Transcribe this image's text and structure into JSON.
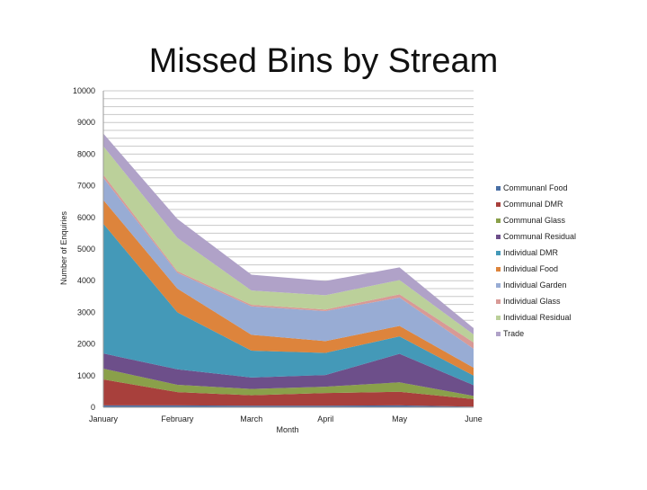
{
  "chart_data": {
    "type": "area",
    "stacked": true,
    "title": "Missed Bins by Stream",
    "xlabel": "Month",
    "ylabel": "Number of Enquiries",
    "categories": [
      "January",
      "February",
      "March",
      "April",
      "May",
      "June"
    ],
    "ylim": [
      0,
      10000
    ],
    "yticks": [
      0,
      1000,
      2000,
      3000,
      4000,
      5000,
      6000,
      7000,
      8000,
      9000,
      10000
    ],
    "grid": true,
    "legend_position": "right",
    "series": [
      {
        "name": "Communanl Food",
        "color": "#4a6fa5",
        "values": [
          60,
          60,
          50,
          50,
          60,
          20
        ]
      },
      {
        "name": "Communal DMR",
        "color": "#a8403c",
        "values": [
          820,
          420,
          330,
          400,
          430,
          240
        ]
      },
      {
        "name": "Communal Glass",
        "color": "#8aa04a",
        "values": [
          340,
          230,
          200,
          200,
          300,
          100
        ]
      },
      {
        "name": "Communal Residual",
        "color": "#6d4f8a",
        "values": [
          480,
          490,
          360,
          370,
          900,
          340
        ]
      },
      {
        "name": "Individual DMR",
        "color": "#4499b8",
        "values": [
          4100,
          1800,
          850,
          700,
          550,
          300
        ]
      },
      {
        "name": "Individual Food",
        "color": "#dd843c",
        "values": [
          750,
          750,
          500,
          370,
          330,
          250
        ]
      },
      {
        "name": "Individual Garden",
        "color": "#98acd4",
        "values": [
          700,
          500,
          900,
          950,
          900,
          600
        ]
      },
      {
        "name": "Individual Glass",
        "color": "#d89a96",
        "values": [
          100,
          50,
          50,
          50,
          100,
          200
        ]
      },
      {
        "name": "Individual Residual",
        "color": "#bbd09a",
        "values": [
          900,
          1050,
          450,
          450,
          450,
          250
        ]
      },
      {
        "name": "Trade",
        "color": "#b0a2c8",
        "values": [
          400,
          600,
          500,
          450,
          400,
          200
        ]
      }
    ]
  }
}
